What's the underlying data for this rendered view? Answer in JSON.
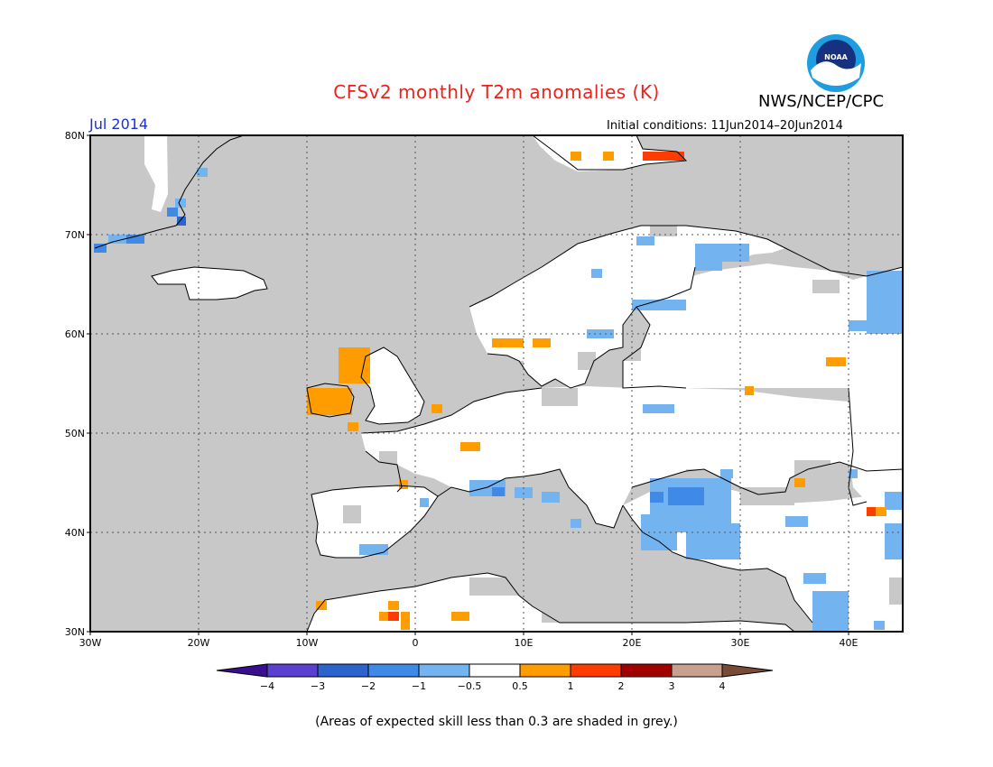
{
  "title": "CFSv2 monthly T2m anomalies (K)",
  "agency": "NWS/NCEP/CPC",
  "month": "Jul 2014",
  "initial_conditions": "Initial conditions: 11Jun2014–20Jun2014",
  "footnote": "(Areas of expected skill less than 0.3 are shaded in grey.)",
  "logo": {
    "name": "noaa-logo",
    "text": "NOAA"
  },
  "map": {
    "lon_range": [
      -30,
      45
    ],
    "lat_range": [
      30,
      80
    ],
    "lon_ticks": [
      "30W",
      "20W",
      "10W",
      "0",
      "10E",
      "20E",
      "30E",
      "40E"
    ],
    "lat_ticks": [
      "30N",
      "40N",
      "50N",
      "60N",
      "70N",
      "80N"
    ],
    "grid": true,
    "colors": {
      "ocean_grey": "#c8c8c8",
      "land": "#ffffff",
      "coast": "#000000"
    }
  },
  "colorbar": {
    "labels": [
      "−4",
      "−3",
      "−2",
      "−1",
      "−0.5",
      "0.5",
      "1",
      "2",
      "3",
      "4"
    ],
    "colors": [
      "#3a0f8f",
      "#5a3fd0",
      "#2a64cc",
      "#3f8ae6",
      "#73b3f0",
      "#ffffff",
      "#ff9c00",
      "#ff3c00",
      "#a00000",
      "#c8a090",
      "#7a4a38"
    ]
  }
}
